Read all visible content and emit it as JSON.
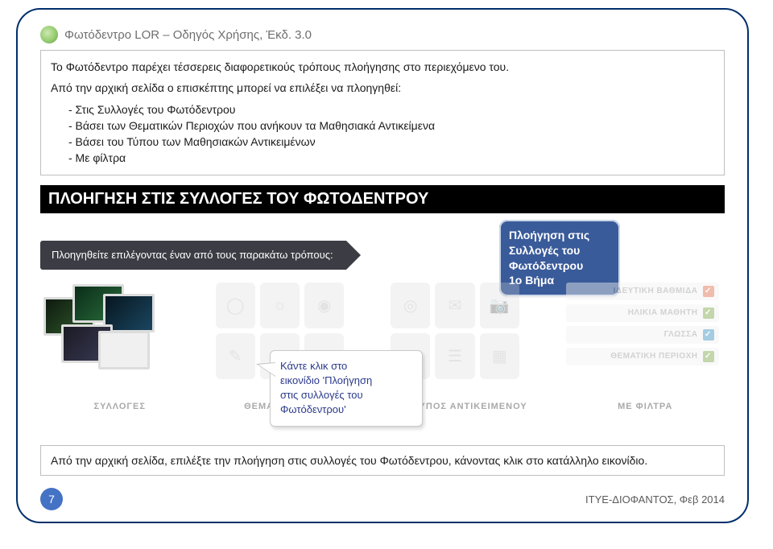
{
  "doc": {
    "title": "Φωτόδεντρο LOR – Οδηγός Χρήσης, Έκδ. 3.0",
    "intro_p1": "Το Φωτόδεντρο παρέχει τέσσερεις διαφορετικούς τρόπους πλοήγησης στο περιεχόμενο του.",
    "intro_p2": "Από την αρχική σελίδα ο επισκέπτης μπορεί να επιλέξει να πλοηγηθεί:",
    "intro_b1": "- Στις Συλλογές του Φωτόδεντρου",
    "intro_b2": "- Βάσει των Θεματικών Περιοχών που ανήκουν τα Μαθησιακά Αντικείμενα",
    "intro_b3": "- Βάσει του Τύπου των Μαθησιακών Αντικειμένων",
    "intro_b4": "- Με φίλτρα"
  },
  "section_heading": "ΠΛΟΗΓΗΣΗ ΣΤΙΣ ΣΥΛΛΟΓΕΣ ΤΟΥ ΦΩΤΟΔΕΝΤΡΟΥ",
  "nav_header": "Πλοηγηθείτε επιλέγοντας έναν από τους παρακάτω τρόπους:",
  "panels": {
    "p1": "ΣΥΛΛΟΓΕΣ",
    "p2": "ΘΕΜΑΤΙΚΗ ΠΕΡΙΟΧΗ",
    "p3": "ΤΥΠΟΣ ΑΝΤΙΚΕΙΜΕΝΟΥ",
    "p4": "ΜΕ ΦΙΛΤΡΑ"
  },
  "filters": {
    "f1": "ΙΔΕΥΤΙΚΗ ΒΑΘΜΙΔΑ",
    "f2": "ΗΛΙΚΙΑ ΜΑΘΗΤΗ",
    "f3": "ΓΛΩΣΣΑ",
    "f4": "ΘΕΜΑΤΙΚΗ ΠΕΡΙΟΧΗ"
  },
  "filter_colors": {
    "f1": "#e06c4a",
    "f2": "#7ca64a",
    "f3": "#3a8fbf",
    "f4": "#7ca64a"
  },
  "step_box": {
    "l1": "Πλοήγηση στις",
    "l2": "Συλλογές του",
    "l3": "Φωτόδεντρου",
    "l4": "1ο Βήμα"
  },
  "speech": {
    "l1": "Κάντε κλικ στο",
    "l2": "εικονίδιο 'Πλοήγηση",
    "l3": "στις συλλογές του",
    "l4": "Φωτόδεντρου'"
  },
  "bottom_note": "Από την αρχική σελίδα, επιλέξτε την πλοήγηση στις συλλογές του Φωτόδεντρου, κάνοντας κλικ στο κατάλληλο εικονίδιο.",
  "footer": {
    "page_number": "7",
    "org": "ΙΤΥΕ-ΔΙΟΦΑΝΤΟΣ, Φεβ 2014"
  },
  "colors": {
    "frame_border": "#002f6c",
    "band_bg": "#000000",
    "step_bg": "#3a5b9a",
    "page_dot": "#4472c4"
  }
}
